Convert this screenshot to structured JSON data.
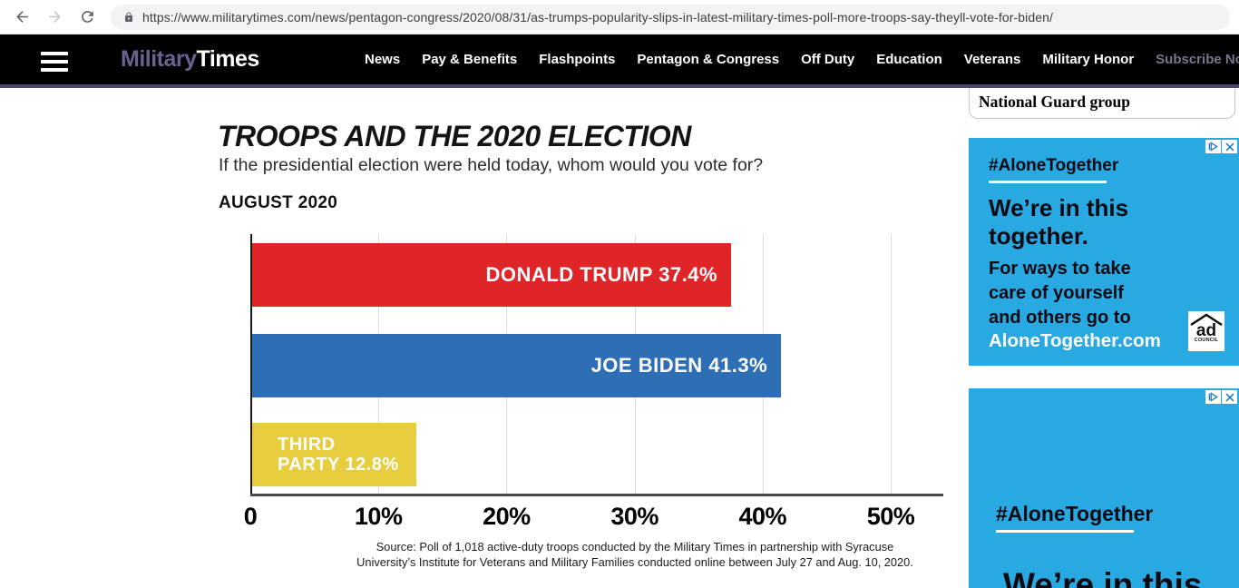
{
  "browser": {
    "url": "https://www.militarytimes.com/news/pentagon-congress/2020/08/31/as-trumps-popularity-slips-in-latest-military-times-poll-more-troops-say-theyll-vote-for-biden/"
  },
  "nav": {
    "logo_part1": "Military",
    "logo_part2": "Times",
    "items": [
      "News",
      "Pay & Benefits",
      "Flashpoints",
      "Pentagon & Congress",
      "Off Duty",
      "Education",
      "Veterans",
      "Military Honor"
    ],
    "subscribe_label": "Subscribe Now"
  },
  "sidebar": {
    "headline": "National Guard group",
    "ad1": {
      "hashtag": "#AloneTogether",
      "headline": "We’re in this together.",
      "body": "For ways to take care of yourself and others go to",
      "link": "AloneTogether.com",
      "council_line1": "ad",
      "council_line2": "COUNCIL"
    },
    "ad2": {
      "hashtag": "#AloneTogether",
      "partial_headline": "We’re in this"
    }
  },
  "chart_data": {
    "type": "bar",
    "orientation": "horizontal",
    "title": "TROOPS AND THE 2020 ELECTION",
    "subtitle": "If the presidential election were held today, whom would you vote for?",
    "period_label": "AUGUST 2020",
    "categories": [
      "Donald Trump",
      "Joe Biden",
      "Third Party"
    ],
    "values": [
      37.4,
      41.3,
      12.8
    ],
    "xlim": [
      0,
      50
    ],
    "grid": true,
    "x_ticks": [
      {
        "label": "0",
        "value": 0
      },
      {
        "label": "10%",
        "value": 10
      },
      {
        "label": "20%",
        "value": 20
      },
      {
        "label": "30%",
        "value": 30
      },
      {
        "label": "40%",
        "value": 40
      },
      {
        "label": "50%",
        "value": 50
      }
    ],
    "bars": [
      {
        "name": "Donald Trump",
        "value": 37.4,
        "color": "#e02529",
        "label_lines": [
          "DONALD TRUMP 37.4%"
        ],
        "label_align": "right"
      },
      {
        "name": "Joe Biden",
        "value": 41.3,
        "color": "#2d6eb5",
        "label_lines": [
          "JOE BIDEN 41.3%"
        ],
        "label_align": "right"
      },
      {
        "name": "Third Party",
        "value": 12.8,
        "color": "#e8ce3f",
        "label_lines": [
          "THIRD",
          "PARTY 12.8%"
        ],
        "label_align": "left"
      }
    ],
    "source_lines": [
      "Source: Poll of 1,018 active-duty troops conducted by the Military Times in partnership with Syracuse",
      "University’s Institute for Veterans and Military Families conducted online between July 27 and Aug. 10, 2020."
    ]
  }
}
